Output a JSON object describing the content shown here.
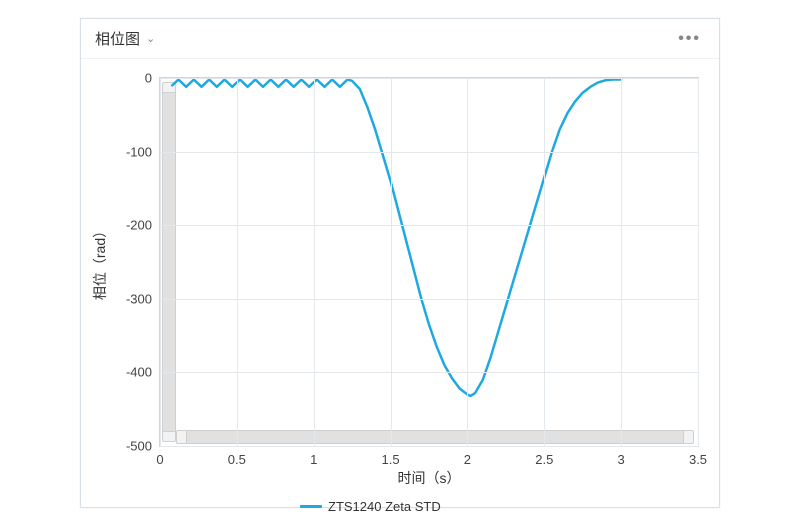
{
  "panel": {
    "title": "相位图",
    "more_label": "•••"
  },
  "chart": {
    "type": "line",
    "xlabel": "时间（s）",
    "ylabel": "相位（rad）",
    "xlim": [
      0,
      3.5
    ],
    "ylim": [
      -500,
      0
    ],
    "xticks": [
      0,
      0.5,
      1,
      1.5,
      2,
      2.5,
      3,
      3.5
    ],
    "yticks": [
      0,
      -100,
      -200,
      -300,
      -400,
      -500
    ],
    "background_color": "#ffffff",
    "grid_color": "#e3e8ec",
    "axis_color": "#cfd6db",
    "tick_fontsize": 13,
    "label_fontsize": 14,
    "line_color": "#1ea9e0",
    "line_width": 2.5,
    "legend_label": "ZTS1240 Zeta STD",
    "legend_swatch_color": "#1ea9e0",
    "legend_fontsize": 13,
    "data_x": [
      0.08,
      0.12,
      0.17,
      0.22,
      0.27,
      0.32,
      0.37,
      0.42,
      0.47,
      0.52,
      0.57,
      0.62,
      0.67,
      0.72,
      0.77,
      0.82,
      0.87,
      0.92,
      0.97,
      1.02,
      1.07,
      1.12,
      1.17,
      1.22,
      1.25,
      1.3,
      1.35,
      1.4,
      1.45,
      1.5,
      1.55,
      1.6,
      1.65,
      1.7,
      1.75,
      1.8,
      1.85,
      1.9,
      1.95,
      2.0,
      2.02,
      2.05,
      2.1,
      2.15,
      2.2,
      2.25,
      2.3,
      2.35,
      2.4,
      2.45,
      2.5,
      2.55,
      2.6,
      2.65,
      2.7,
      2.75,
      2.8,
      2.85,
      2.9,
      2.95,
      3.0
    ],
    "data_y": [
      -10,
      -2,
      -12,
      -2,
      -12,
      -2,
      -12,
      -2,
      -12,
      -2,
      -12,
      -2,
      -12,
      -2,
      -12,
      -2,
      -12,
      -2,
      -12,
      -2,
      -12,
      -2,
      -12,
      -2,
      -4,
      -15,
      -40,
      -70,
      -105,
      -140,
      -180,
      -220,
      -260,
      -300,
      -335,
      -365,
      -390,
      -408,
      -422,
      -430,
      -432,
      -428,
      -410,
      -380,
      -345,
      -310,
      -275,
      -240,
      -205,
      -170,
      -135,
      -100,
      -70,
      -48,
      -32,
      -20,
      -12,
      -6,
      -3,
      -2,
      -2
    ],
    "scrollbar_track": "#e1e1e1",
    "scrollbar_border": "#cfcfcf",
    "scrollbar_cap": "#f3f3f3"
  }
}
